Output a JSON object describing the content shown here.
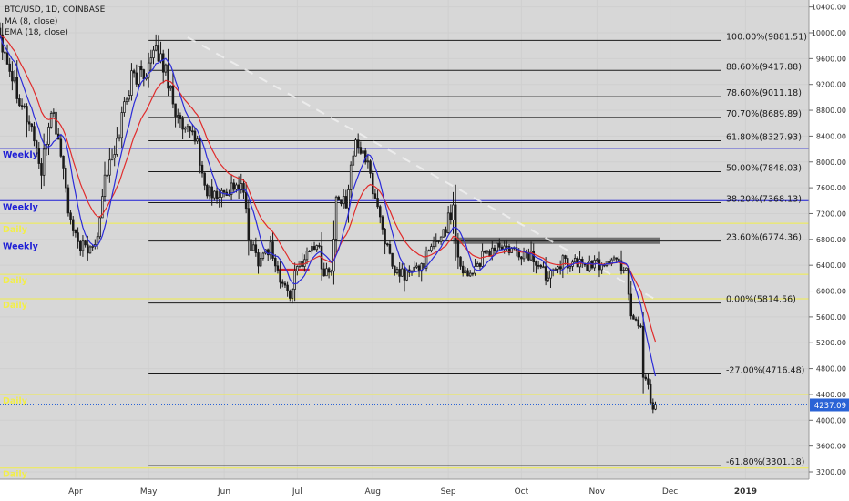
{
  "chart_data": {
    "type": "candlestick",
    "symbol_line": "BTC/USD, 1D, COINBASE",
    "indicators": [
      "MA (8, close)",
      "EMA (18, close)"
    ],
    "colors": {
      "background": "#d7d7d7",
      "candle": "#1a1a1a",
      "ma": "#2b2bd8",
      "ema": "#e02b2b",
      "fib_line": "#1a1a1a",
      "weekly": "#1f1fd6",
      "daily": "#f2ee4a",
      "price_tag": "#2a63d6",
      "resistance_box": "#5e5e5e",
      "support_mark": "#d8242c",
      "trend": "#f2f2f2"
    },
    "y_axis": {
      "ticks": [
        10400,
        10000,
        9600,
        9200,
        8800,
        8400,
        8000,
        7600,
        7200,
        6800,
        6400,
        6000,
        5600,
        5200,
        4800,
        4400,
        4000,
        3600,
        3200
      ],
      "tick_labels": [
        "10400.00",
        "10000.00",
        "9600.00",
        "9200.00",
        "8800.00",
        "8400.00",
        "8000.00",
        "7600.00",
        "7200.00",
        "6800.00",
        "6400.00",
        "6000.00",
        "5600.00",
        "5200.00",
        "4800.00",
        "4400.00",
        "4000.00",
        "3600.00",
        "3200.00"
      ],
      "range": [
        3100,
        10450
      ]
    },
    "x_axis": {
      "labels": [
        "Apr",
        "May",
        "Jun",
        "Jul",
        "Aug",
        "Sep",
        "Oct",
        "Nov",
        "Dec",
        "2019"
      ],
      "label_dates": [
        "2018-04-01",
        "2018-05-01",
        "2018-06-01",
        "2018-07-01",
        "2018-08-01",
        "2018-09-01",
        "2018-10-01",
        "2018-11-01",
        "2018-12-01",
        "2019-01-01"
      ],
      "range": [
        "2018-03-01",
        "2019-01-27"
      ]
    },
    "current_price": 4237.09,
    "current_price_label": "4237.09",
    "fib_levels": [
      {
        "label": "100.00%(9881.51)",
        "price": 9881.51,
        "start": "2018-05-01"
      },
      {
        "label": "88.60%(9417.88)",
        "price": 9417.88,
        "start": "2018-05-01"
      },
      {
        "label": "78.60%(9011.18)",
        "price": 9011.18,
        "start": "2018-05-01"
      },
      {
        "label": "70.70%(8689.89)",
        "price": 8689.89,
        "start": "2018-05-01"
      },
      {
        "label": "61.80%(8327.93)",
        "price": 8327.93,
        "start": "2018-05-01"
      },
      {
        "label": "50.00%(7848.03)",
        "price": 7848.03,
        "start": "2018-05-01"
      },
      {
        "label": "38.20%(7368.13)",
        "price": 7368.13,
        "start": "2018-05-01"
      },
      {
        "label": "23.60%(6774.36)",
        "price": 6774.36,
        "start": "2018-05-01"
      },
      {
        "label": "0.00%(5814.56)",
        "price": 5814.56,
        "start": "2018-05-01"
      },
      {
        "label": "-27.00%(4716.48)",
        "price": 4716.48,
        "start": "2018-05-01"
      },
      {
        "label": "-61.80%(3301.18)",
        "price": 3301.18,
        "start": "2018-05-01"
      }
    ],
    "horizontal_levels": [
      {
        "label": "Weekly",
        "price": 8210,
        "color": "weekly"
      },
      {
        "label": "Weekly",
        "price": 7400,
        "color": "weekly"
      },
      {
        "label": "Daily",
        "price": 7050,
        "color": "daily"
      },
      {
        "label": "Weekly",
        "price": 6790,
        "color": "weekly"
      },
      {
        "label": "Daily",
        "price": 6260,
        "color": "daily"
      },
      {
        "label": "Daily",
        "price": 5880,
        "color": "daily"
      },
      {
        "label": "Daily",
        "price": 4400,
        "color": "daily"
      },
      {
        "label": "Daily",
        "price": 3260,
        "color": "daily"
      }
    ],
    "resistance_box": {
      "start": "2018-09-03",
      "end": "2018-11-27",
      "low": 6730,
      "high": 6830
    },
    "support_mark": {
      "start": "2018-06-23",
      "end": "2018-07-06",
      "price": 6330
    },
    "trend_line": {
      "start": "2018-05-17",
      "end": "2018-11-25",
      "p_start": 9930,
      "p_end": 5870
    },
    "anchors": [
      [
        "2018-03-01",
        10000
      ],
      [
        "2018-03-06",
        9350
      ],
      [
        "2018-03-12",
        8700
      ],
      [
        "2018-03-15",
        8400
      ],
      [
        "2018-03-18",
        7800
      ],
      [
        "2018-03-22",
        8850
      ],
      [
        "2018-03-26",
        8150
      ],
      [
        "2018-03-30",
        7000
      ],
      [
        "2018-04-01",
        6800
      ],
      [
        "2018-04-06",
        6600
      ],
      [
        "2018-04-10",
        6900
      ],
      [
        "2018-04-13",
        7800
      ],
      [
        "2018-04-17",
        8100
      ],
      [
        "2018-04-21",
        8900
      ],
      [
        "2018-04-24",
        9300
      ],
      [
        "2018-04-29",
        9400
      ],
      [
        "2018-05-05",
        9700
      ],
      [
        "2018-05-09",
        9300
      ],
      [
        "2018-05-13",
        8650
      ],
      [
        "2018-05-16",
        8400
      ],
      [
        "2018-05-20",
        8450
      ],
      [
        "2018-05-24",
        7600
      ],
      [
        "2018-05-28",
        7450
      ],
      [
        "2018-05-31",
        7500
      ],
      [
        "2018-06-05",
        7650
      ],
      [
        "2018-06-09",
        7550
      ],
      [
        "2018-06-11",
        6800
      ],
      [
        "2018-06-15",
        6500
      ],
      [
        "2018-06-20",
        6700
      ],
      [
        "2018-06-24",
        6150
      ],
      [
        "2018-06-28",
        5950
      ],
      [
        "2018-07-01",
        6350
      ],
      [
        "2018-07-05",
        6600
      ],
      [
        "2018-07-09",
        6750
      ],
      [
        "2018-07-12",
        6300
      ],
      [
        "2018-07-15",
        6300
      ],
      [
        "2018-07-17",
        7350
      ],
      [
        "2018-07-21",
        7400
      ],
      [
        "2018-07-24",
        8200
      ],
      [
        "2018-07-28",
        8200
      ],
      [
        "2018-08-01",
        7600
      ],
      [
        "2018-08-05",
        7000
      ],
      [
        "2018-08-09",
        6300
      ],
      [
        "2018-08-14",
        6250
      ],
      [
        "2018-08-20",
        6350
      ],
      [
        "2018-08-26",
        6700
      ],
      [
        "2018-08-31",
        7000
      ],
      [
        "2018-09-03",
        7300
      ],
      [
        "2018-09-05",
        6500
      ],
      [
        "2018-09-09",
        6250
      ],
      [
        "2018-09-15",
        6500
      ],
      [
        "2018-09-21",
        6700
      ],
      [
        "2018-09-27",
        6600
      ],
      [
        "2018-10-05",
        6550
      ],
      [
        "2018-10-11",
        6250
      ],
      [
        "2018-10-15",
        6450
      ],
      [
        "2018-10-22",
        6450
      ],
      [
        "2018-10-28",
        6400
      ],
      [
        "2018-11-02",
        6400
      ],
      [
        "2018-11-07",
        6500
      ],
      [
        "2018-11-13",
        6350
      ],
      [
        "2018-11-15",
        5650
      ],
      [
        "2018-11-19",
        5450
      ],
      [
        "2018-11-20",
        4700
      ],
      [
        "2018-11-22",
        4550
      ],
      [
        "2018-11-24",
        4150
      ],
      [
        "2018-11-25",
        4237
      ]
    ]
  }
}
